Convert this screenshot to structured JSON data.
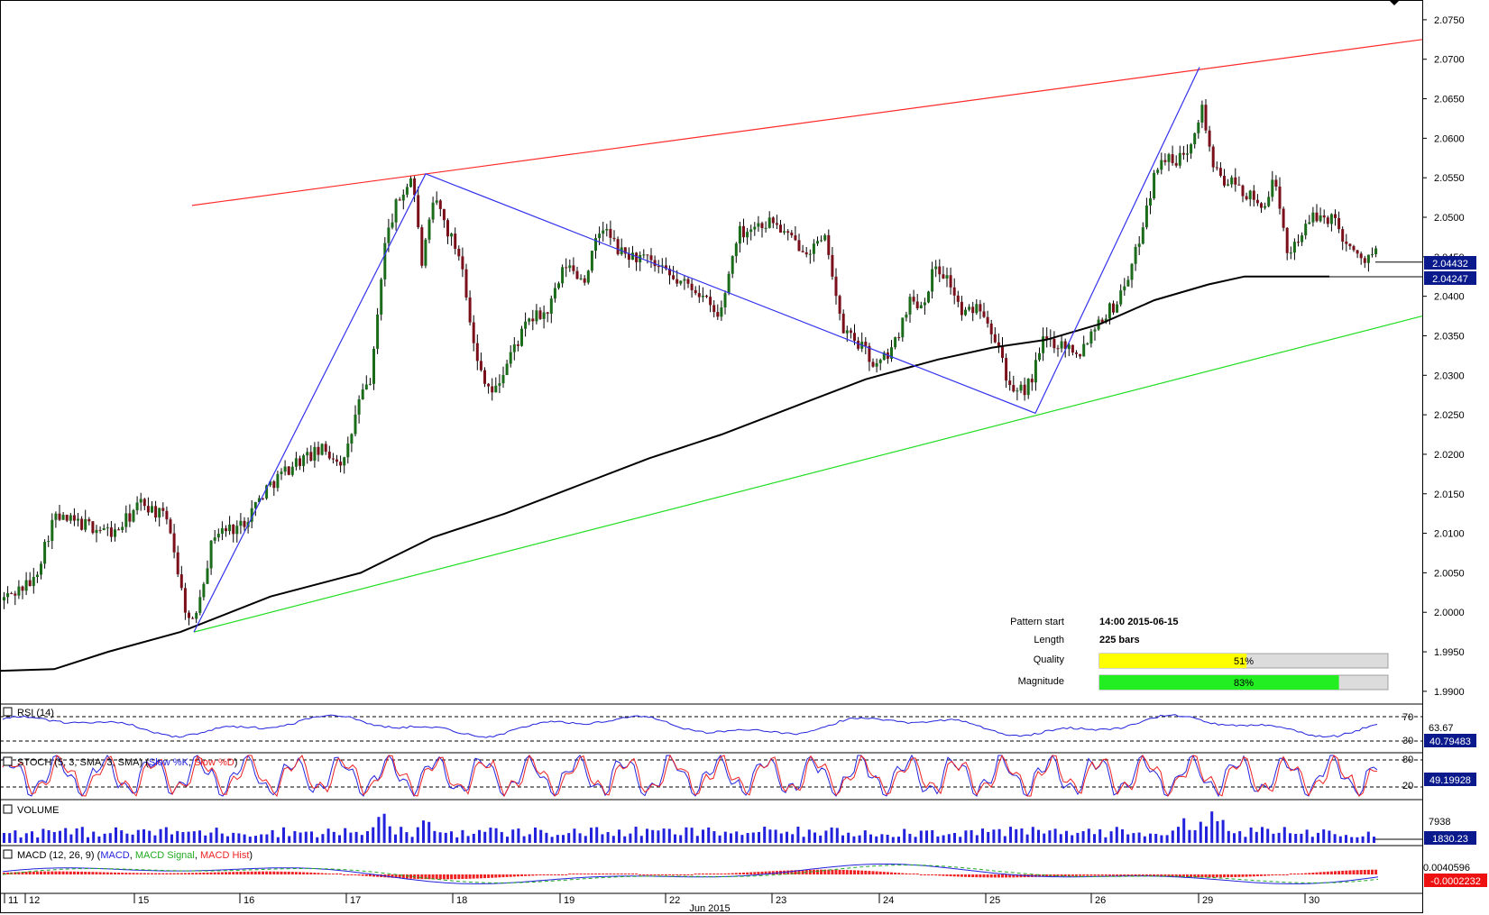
{
  "chart_data": {
    "type": "candlestick",
    "instrument_note": "",
    "price_axis": {
      "ticks": [
        "2.0750",
        "2.0700",
        "2.0650",
        "2.0600",
        "2.0550",
        "2.0500",
        "2.0450",
        "2.0400",
        "2.0350",
        "2.0300",
        "2.0250",
        "2.0200",
        "2.0150",
        "2.0100",
        "2.0050",
        "2.0000",
        "1.9950",
        "1.9900"
      ],
      "range": [
        1.9885,
        2.0775
      ],
      "current_price": "2.04432",
      "ma_value": "2.04247"
    },
    "x_axis": {
      "day_labels": [
        "11",
        "12",
        "15",
        "16",
        "17",
        "18",
        "19",
        "22",
        "23",
        "24",
        "25",
        "26",
        "29",
        "30"
      ],
      "month_label": "Jun 2015"
    },
    "pattern_info": {
      "pattern_start_label": "Pattern start",
      "pattern_start_value": "14:00 2015-06-15",
      "length_label": "Length",
      "length_value": "225 bars",
      "quality_label": "Quality",
      "quality_value": "51%",
      "quality_fraction": 0.51,
      "magnitude_label": "Magnitude",
      "magnitude_value": "83%",
      "magnitude_fraction": 0.83
    },
    "trendlines": {
      "resistance": {
        "color": "#ff2a2a",
        "from_price": 2.0515,
        "to_price": 2.0725
      },
      "support": {
        "color": "#22dd22",
        "from_price": 1.9975,
        "to_price": 2.0375
      }
    },
    "zigzag_prices": [
      1.9975,
      2.0555,
      2.0252,
      2.069
    ],
    "indicators": {
      "rsi": {
        "label": "RSI (14)",
        "levels": [
          "70",
          "30"
        ],
        "extra_tick": "63.67",
        "value": "40.79483"
      },
      "stoch": {
        "label": "STOCH (5, 3, SMA, 3, SMA)",
        "legend_k": "Slow %K",
        "legend_d": "Slow %D",
        "levels": [
          "80",
          "20"
        ],
        "value": "49.19928"
      },
      "volume": {
        "label": "VOLUME",
        "tick": "7938",
        "value": "1830.23"
      },
      "macd": {
        "label": "MACD (12, 26, 9)",
        "legend_macd": "MACD",
        "legend_signal": "MACD Signal",
        "legend_hist": "MACD Hist",
        "tick": "0.0040596",
        "value": "-0.0002232"
      }
    },
    "colors": {
      "bull": "#1a6b1a",
      "bear": "#7a0f1a",
      "ma": "#000000",
      "zigzag": "#3333ee",
      "indicator_blue": "#2222dd",
      "indicator_red": "#ee2222",
      "quality_bar": "#ffff00",
      "magnitude_bar": "#22ee22",
      "value_box": "#0a1a8c"
    }
  }
}
